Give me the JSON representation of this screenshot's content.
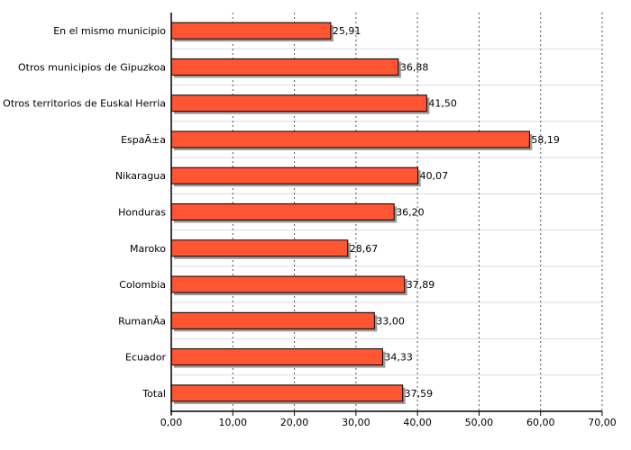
{
  "chart_data": {
    "type": "bar",
    "orientation": "horizontal",
    "categories": [
      "En el mismo municipio",
      "Otros municipios de Gipuzkoa",
      "Otros territorios de Euskal Herria",
      "EspaÃ±a",
      "Nikaragua",
      "Honduras",
      "Maroko",
      "Colombia",
      "RumanÃ­a",
      "Ecuador",
      "Total"
    ],
    "values": [
      25.91,
      36.88,
      41.5,
      58.19,
      40.07,
      36.2,
      28.67,
      37.89,
      33.0,
      34.33,
      37.59
    ],
    "value_labels": [
      "25,91",
      "36,88",
      "41,50",
      "58,19",
      "40,07",
      "36,20",
      "28,67",
      "37,89",
      "33,00",
      "34,33",
      "37,59"
    ],
    "xticks": [
      0,
      10,
      20,
      30,
      40,
      50,
      60,
      70
    ],
    "xtick_labels": [
      "0,00",
      "10,00",
      "20,00",
      "30,00",
      "40,00",
      "50,00",
      "60,00",
      "70,00"
    ],
    "xlim": [
      0,
      70
    ],
    "grid": "vertical dotted",
    "legend": "none",
    "colors": {
      "bar_fill": "#ff5533",
      "bar_stroke": "#000000",
      "shadow": "#999999",
      "grid": "#555555",
      "separator": "#dddddd"
    }
  }
}
